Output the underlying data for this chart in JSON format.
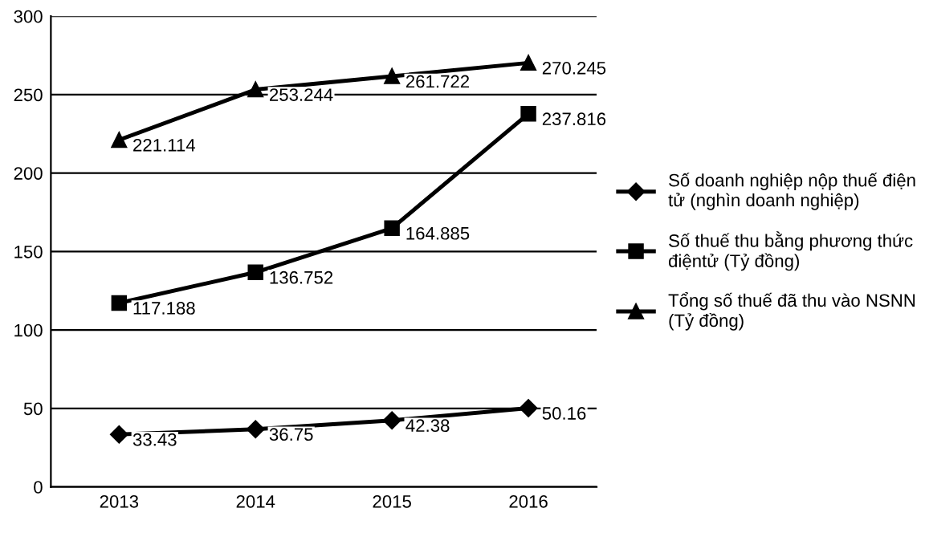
{
  "chart_data": {
    "type": "line",
    "categories": [
      "2013",
      "2014",
      "2015",
      "2016"
    ],
    "series": [
      {
        "name": "Số doanh nghiệp nộp thuế điện tử (nghìn doanh nghiệp)",
        "color": "#000000",
        "marker": "diamond",
        "values": [
          33.43,
          36.75,
          42.38,
          50.16
        ]
      },
      {
        "name": "Số thuế thu bằng phương thức điệntử (Tỷ đồng)",
        "color": "#000000",
        "marker": "square",
        "values": [
          117.188,
          136.752,
          164.885,
          237.816
        ]
      },
      {
        "name": "Tổng số thuế đã thu vào NSNN (Tỷ đồng)",
        "color": "#000000",
        "marker": "triangle",
        "values": [
          221.114,
          253.244,
          261.722,
          270.245
        ]
      }
    ],
    "ylim": [
      0,
      300
    ],
    "yticks": [
      0,
      50,
      100,
      150,
      200,
      250,
      300
    ],
    "grid": "y",
    "legend": "right",
    "data_labels": true,
    "line_style": "solid"
  }
}
